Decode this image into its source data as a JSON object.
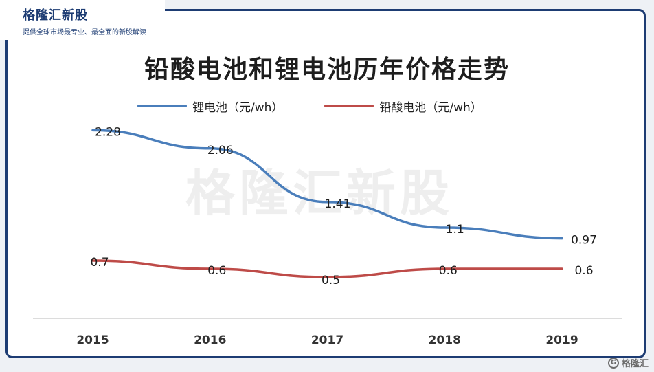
{
  "header": {
    "brand": "格隆汇新股",
    "tagline": "提供全球市场最专业、最全面的新股解读"
  },
  "watermark": "格隆汇新股",
  "corner_logo": {
    "icon": "g-logo-icon",
    "text": "格隆汇"
  },
  "colors": {
    "frame": "#1d3c73",
    "lithium": "#4a7ebb",
    "lead_acid": "#be4b48"
  },
  "chart_data": {
    "type": "line",
    "title": "铅酸电池和锂电池历年价格走势",
    "xlabel": "",
    "ylabel": "",
    "categories": [
      "2015",
      "2016",
      "2017",
      "2018",
      "2019"
    ],
    "series": [
      {
        "name": "锂电池（元/wh）",
        "values": [
          2.28,
          2.06,
          1.41,
          1.1,
          0.97
        ],
        "labels": [
          "2.28",
          "2.06",
          "1.41",
          "1.1",
          "0.97"
        ],
        "color": "#4a7ebb"
      },
      {
        "name": "铅酸电池（元/wh）",
        "values": [
          0.7,
          0.6,
          0.5,
          0.6,
          0.6
        ],
        "labels": [
          "0.7",
          "0.6",
          "0.5",
          "0.6",
          "0.6"
        ],
        "color": "#be4b48"
      }
    ],
    "ylim": [
      0,
      2.4
    ],
    "grid": false,
    "legend": "top"
  }
}
